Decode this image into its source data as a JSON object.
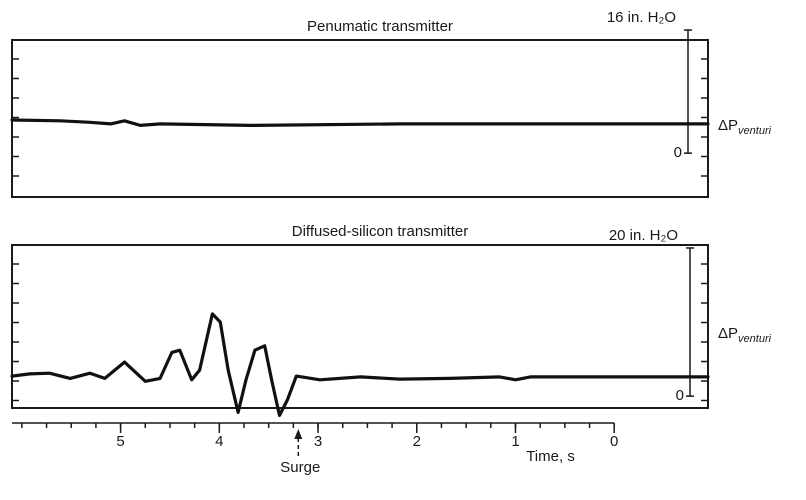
{
  "chart_data": [
    {
      "type": "line",
      "title": "Penumatic transmitter",
      "y_label": {
        "main": "ΔP",
        "sub": "venturi"
      },
      "x": [
        6.1,
        5.61,
        5.31,
        5.1,
        4.96,
        4.8,
        4.6,
        3.69,
        2.17,
        -0.95
      ],
      "values": [
        4.3,
        4.2,
        4.0,
        3.8,
        4.2,
        3.6,
        3.8,
        3.6,
        3.8,
        3.8
      ],
      "xlim": [
        6.1,
        -0.95
      ],
      "ylim": [
        -5.7,
        14.7
      ],
      "yticks": [
        0,
        {
          "value": 16,
          "label": "16 in. H₂O"
        }
      ],
      "color": "#111111"
    },
    {
      "type": "line",
      "title": "Diffused-silicon transmitter",
      "y_label": {
        "main": "ΔP",
        "sub": "venturi"
      },
      "x_label": "Time, s",
      "x": [
        6.1,
        5.92,
        5.72,
        5.51,
        5.31,
        5.16,
        4.96,
        4.75,
        4.6,
        4.48,
        4.4,
        4.28,
        4.2,
        4.07,
        3.99,
        3.91,
        3.81,
        3.73,
        3.64,
        3.54,
        3.47,
        3.39,
        3.31,
        3.22,
        2.98,
        2.57,
        2.17,
        1.66,
        1.16,
        1.0,
        0.85,
        -0.95
      ],
      "values": [
        2.7,
        3.0,
        3.1,
        2.4,
        3.1,
        2.4,
        4.6,
        2.0,
        2.4,
        5.9,
        6.2,
        2.2,
        3.5,
        11.1,
        10.0,
        3.5,
        -2.2,
        2.2,
        6.2,
        6.8,
        2.2,
        -2.6,
        -0.5,
        2.7,
        2.2,
        2.6,
        2.3,
        2.4,
        2.6,
        2.2,
        2.6,
        2.6
      ],
      "xlim": [
        6.1,
        -0.95
      ],
      "ylim": [
        -1.6,
        20.4
      ],
      "xticks": [
        5,
        4,
        3,
        2,
        1,
        0
      ],
      "yticks": [
        0,
        {
          "value": 20,
          "label": "20 in. H₂O"
        }
      ],
      "color": "#111111",
      "annotations": [
        {
          "text": "Surge",
          "x": 3.2
        }
      ]
    }
  ]
}
